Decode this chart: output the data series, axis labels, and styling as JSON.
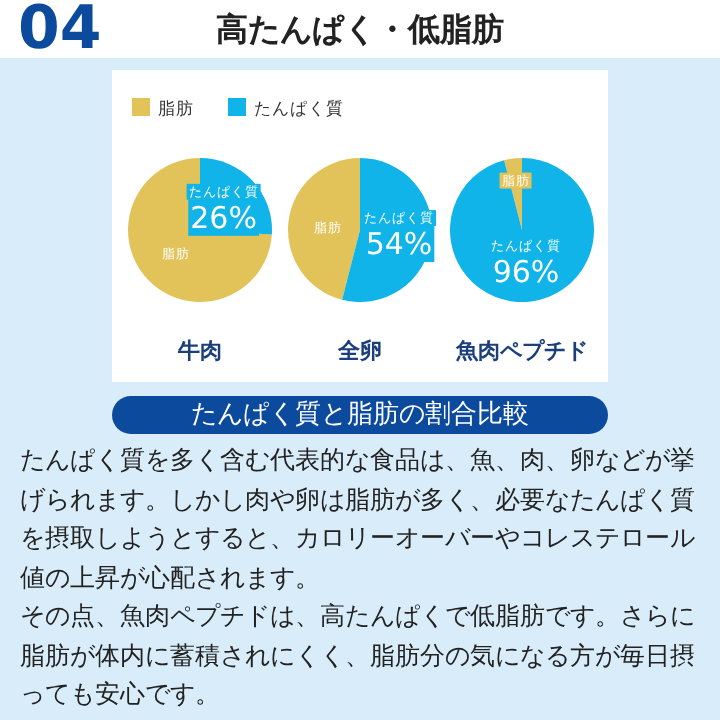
{
  "chart_data": [
    {
      "type": "pie",
      "title": "高たんぱく・低脂肪",
      "subtitle": "たんぱく質と脂肪の割合比較",
      "annotations": [
        "04",
        "たんぱく質を多く含む代表的な食品は、魚、肉、卵などが挙げられます。しかし肉や卵は脂肪が多く、必要なたんぱく質を摂取しようとすると、カロリーオーバーやコレステロール値の上昇が心配されます。",
        "その点、魚肉ペプチドは、高たんぱくで低脂肪です。さらに脂肪が体内に蓄積されにくく、脂肪分の気になる方が毎日摂っても安心です。"
      ],
      "legend": "top",
      "xlabel": "牛肉",
      "categories": [
        "脂肪",
        "たんぱく質"
      ],
      "values": [
        74,
        26
      ],
      "colors": [
        "#e2c35a",
        "#10b4e8"
      ],
      "value_labels": [
        null,
        "26%"
      ]
    },
    {
      "type": "pie",
      "xlabel": "全卵",
      "categories": [
        "脂肪",
        "たんぱく質"
      ],
      "values": [
        46,
        54
      ],
      "colors": [
        "#e2c35a",
        "#10b4e8"
      ],
      "value_labels": [
        null,
        "54%"
      ]
    },
    {
      "type": "pie",
      "xlabel": "魚肉ペプチド",
      "categories": [
        "脂肪",
        "たんぱく質"
      ],
      "values": [
        4,
        96
      ],
      "colors": [
        "#e2c35a",
        "#10b4e8"
      ],
      "value_labels": [
        null,
        "96%"
      ]
    }
  ]
}
